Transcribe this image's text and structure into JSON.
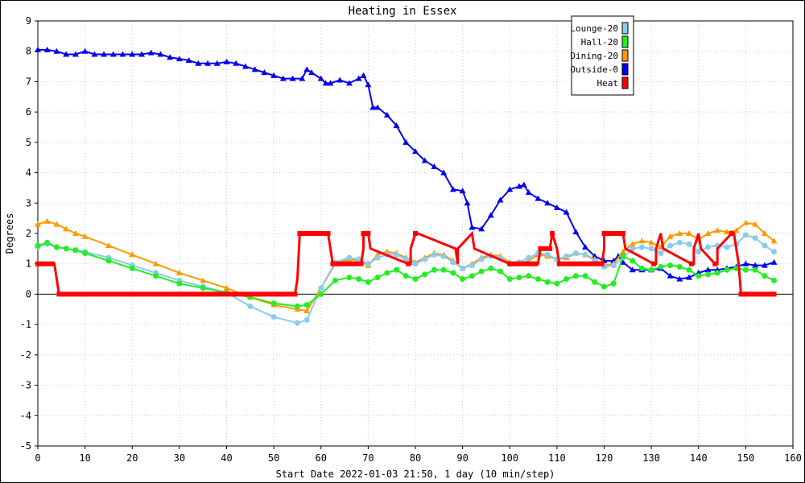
{
  "chart_data": {
    "type": "line",
    "title": "Heating in Essex",
    "xlabel": "Start Date 2022-01-03 21:50, 1 day (10 min/step)",
    "ylabel": "Degrees",
    "xlim": [
      0,
      160
    ],
    "ylim": [
      -5,
      9
    ],
    "x_ticks": [
      0,
      10,
      20,
      30,
      40,
      50,
      60,
      70,
      80,
      90,
      100,
      110,
      120,
      130,
      140,
      150,
      160
    ],
    "y_ticks": [
      -5,
      -4,
      -3,
      -2,
      -1,
      0,
      1,
      2,
      3,
      4,
      5,
      6,
      7,
      8,
      9
    ],
    "grid": true,
    "legend_position": "top-right",
    "series": [
      {
        "name": "Outside-0",
        "color": "#0000ee",
        "marker": "triangle",
        "x": [
          0,
          2,
          4,
          6,
          8,
          10,
          12,
          14,
          16,
          18,
          20,
          22,
          24,
          26,
          28,
          30,
          32,
          34,
          36,
          38,
          40,
          42,
          44,
          46,
          48,
          50,
          52,
          54,
          56,
          57,
          58,
          60,
          61,
          62,
          64,
          66,
          68,
          69,
          70,
          71,
          72,
          74,
          76,
          78,
          80,
          82,
          84,
          86,
          88,
          90,
          91,
          92,
          94,
          96,
          98,
          100,
          102,
          103,
          104,
          106,
          108,
          110,
          112,
          114,
          116,
          118,
          120,
          122,
          123,
          124,
          126,
          128,
          130,
          132,
          134,
          136,
          138,
          140,
          142,
          144,
          146,
          148,
          150,
          152,
          154,
          156
        ],
        "y": [
          8.05,
          8.05,
          8.0,
          7.9,
          7.9,
          8.0,
          7.9,
          7.9,
          7.9,
          7.9,
          7.9,
          7.9,
          7.95,
          7.9,
          7.8,
          7.75,
          7.7,
          7.6,
          7.6,
          7.6,
          7.65,
          7.6,
          7.5,
          7.4,
          7.3,
          7.2,
          7.1,
          7.1,
          7.1,
          7.4,
          7.3,
          7.1,
          6.95,
          6.95,
          7.05,
          6.95,
          7.1,
          7.2,
          6.9,
          6.15,
          6.15,
          5.9,
          5.55,
          5.0,
          4.7,
          4.4,
          4.2,
          4.0,
          3.45,
          3.4,
          3.0,
          2.2,
          2.15,
          2.6,
          3.1,
          3.45,
          3.55,
          3.6,
          3.35,
          3.15,
          3.0,
          2.85,
          2.7,
          2.05,
          1.55,
          1.25,
          1.1,
          1.1,
          1.25,
          1.05,
          0.8,
          0.8,
          0.8,
          0.85,
          0.6,
          0.5,
          0.55,
          0.7,
          0.8,
          0.8,
          0.85,
          0.9,
          1.0,
          0.95,
          0.95,
          1.05
        ]
      },
      {
        "name": "Dining-20",
        "color": "#ff9900",
        "marker": "triangle",
        "x": [
          0,
          2,
          4,
          6,
          8,
          10,
          15,
          20,
          25,
          30,
          35,
          40,
          45,
          50,
          55,
          57,
          60,
          63,
          66,
          68,
          70,
          72,
          74,
          76,
          78,
          80,
          82,
          84,
          86,
          88,
          90,
          92,
          94,
          96,
          98,
          100,
          102,
          104,
          106,
          108,
          110,
          112,
          114,
          116,
          118,
          120,
          122,
          124,
          126,
          128,
          130,
          132,
          134,
          136,
          138,
          140,
          142,
          144,
          146,
          148,
          150,
          152,
          154,
          156
        ],
        "y": [
          2.3,
          2.4,
          2.3,
          2.15,
          2.0,
          1.9,
          1.6,
          1.3,
          1.0,
          0.7,
          0.45,
          0.2,
          -0.1,
          -0.35,
          -0.5,
          -0.55,
          0.2,
          1.0,
          1.15,
          1.1,
          0.95,
          1.3,
          1.4,
          1.35,
          1.2,
          1.05,
          1.2,
          1.35,
          1.3,
          1.1,
          0.85,
          1.0,
          1.2,
          1.3,
          1.25,
          1.05,
          1.0,
          1.1,
          1.3,
          1.25,
          1.15,
          1.2,
          1.35,
          1.3,
          1.15,
          0.95,
          1.0,
          1.4,
          1.65,
          1.75,
          1.7,
          1.55,
          1.9,
          2.0,
          2.0,
          1.8,
          2.0,
          2.1,
          2.05,
          2.1,
          2.35,
          2.3,
          2.0,
          1.75
        ]
      },
      {
        "name": "Lounge-20",
        "color": "#88ccee",
        "marker": "circle",
        "x": [
          0,
          2,
          4,
          6,
          8,
          10,
          15,
          20,
          25,
          30,
          35,
          40,
          45,
          50,
          55,
          57,
          60,
          63,
          66,
          68,
          70,
          72,
          74,
          76,
          78,
          80,
          82,
          84,
          86,
          88,
          90,
          92,
          94,
          96,
          98,
          100,
          102,
          104,
          106,
          108,
          110,
          112,
          114,
          116,
          118,
          120,
          122,
          124,
          126,
          128,
          130,
          132,
          134,
          136,
          138,
          140,
          142,
          144,
          146,
          148,
          150,
          152,
          154,
          156
        ],
        "y": [
          1.55,
          1.65,
          1.55,
          1.5,
          1.45,
          1.4,
          1.2,
          0.95,
          0.7,
          0.45,
          0.25,
          0.05,
          -0.4,
          -0.75,
          -0.95,
          -0.85,
          0.2,
          1.05,
          1.2,
          1.15,
          1.0,
          1.2,
          1.3,
          1.3,
          1.15,
          1.0,
          1.15,
          1.3,
          1.25,
          1.05,
          0.85,
          0.95,
          1.15,
          1.25,
          1.2,
          1.0,
          1.05,
          1.2,
          1.35,
          1.3,
          1.15,
          1.25,
          1.35,
          1.3,
          1.1,
          0.9,
          0.95,
          1.2,
          1.5,
          1.55,
          1.5,
          1.35,
          1.6,
          1.7,
          1.65,
          1.4,
          1.55,
          1.6,
          1.55,
          1.65,
          1.95,
          1.85,
          1.6,
          1.4
        ]
      },
      {
        "name": "Hall-20",
        "color": "#22ee22",
        "marker": "circle",
        "x": [
          0,
          2,
          4,
          6,
          8,
          10,
          15,
          20,
          25,
          30,
          35,
          40,
          45,
          50,
          55,
          57,
          60,
          63,
          66,
          68,
          70,
          72,
          74,
          76,
          78,
          80,
          82,
          84,
          86,
          88,
          90,
          92,
          94,
          96,
          98,
          100,
          102,
          104,
          106,
          108,
          110,
          112,
          114,
          116,
          118,
          120,
          122,
          124,
          126,
          128,
          130,
          132,
          134,
          136,
          138,
          140,
          142,
          144,
          146,
          148,
          150,
          152,
          154,
          156
        ],
        "y": [
          1.6,
          1.7,
          1.55,
          1.5,
          1.45,
          1.35,
          1.1,
          0.85,
          0.6,
          0.35,
          0.2,
          0.05,
          -0.1,
          -0.3,
          -0.4,
          -0.35,
          0.0,
          0.45,
          0.55,
          0.5,
          0.4,
          0.55,
          0.7,
          0.8,
          0.6,
          0.5,
          0.65,
          0.8,
          0.8,
          0.7,
          0.5,
          0.6,
          0.75,
          0.85,
          0.75,
          0.5,
          0.55,
          0.6,
          0.5,
          0.4,
          0.35,
          0.5,
          0.6,
          0.6,
          0.4,
          0.25,
          0.35,
          1.25,
          1.1,
          0.85,
          0.8,
          0.9,
          0.95,
          0.9,
          0.8,
          0.6,
          0.65,
          0.7,
          0.8,
          0.85,
          0.8,
          0.8,
          0.6,
          0.45
        ]
      },
      {
        "name": "Heat",
        "color": "#ff0000",
        "marker": "square",
        "step": true,
        "x": [
          0,
          3.5,
          4,
          4.5,
          54.5,
          55,
          55.5,
          61.5,
          62,
          62.5,
          68.5,
          69,
          69,
          70,
          70.5,
          78.5,
          79,
          79,
          80,
          80.5,
          88.5,
          89,
          89,
          92,
          92.5,
          100,
          100.5,
          106,
          106.5,
          108.5,
          109,
          109,
          110,
          110.5,
          119.5,
          120,
          120,
          124,
          124.5,
          130.5,
          131,
          131,
          132,
          132.5,
          138.5,
          139,
          139,
          140,
          140.5,
          143.5,
          144,
          144,
          147,
          147.5,
          148.5,
          149,
          156.5
        ],
        "y": [
          1,
          1,
          0.5,
          0,
          0,
          0.5,
          2,
          2,
          1.5,
          1,
          1,
          1.5,
          2,
          2,
          1.5,
          1,
          1,
          1.5,
          2,
          2,
          1.5,
          1,
          1.5,
          2,
          1.5,
          1,
          1,
          1,
          1.5,
          1.5,
          2,
          2,
          1.5,
          1,
          1,
          1.5,
          2,
          2,
          1.5,
          1,
          1,
          1.5,
          2,
          1.5,
          1,
          1,
          1.5,
          2,
          1.5,
          1,
          1,
          1.5,
          2,
          2,
          1,
          0,
          0
        ]
      }
    ],
    "legend_order": [
      "Lounge-20",
      "Hall-20",
      "Dining-20",
      "Outside-0",
      "Heat"
    ]
  }
}
